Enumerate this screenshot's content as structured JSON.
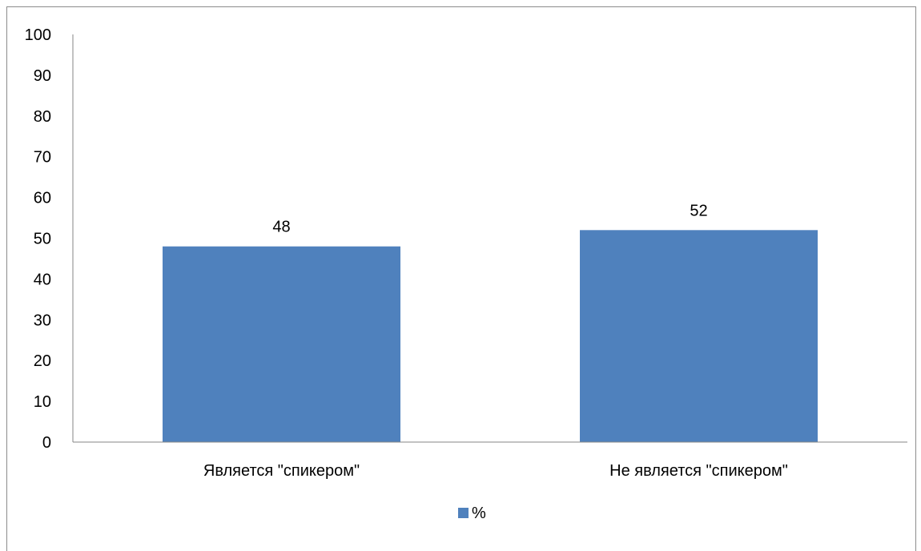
{
  "chart_data": {
    "type": "bar",
    "categories": [
      "Является \"спикером\"",
      "Не является \"спикером\""
    ],
    "series": [
      {
        "name": "%",
        "values": [
          48,
          52
        ],
        "color": "#4f81bd"
      }
    ],
    "data_labels": [
      "48",
      "52"
    ],
    "ylim": [
      0,
      100
    ],
    "yticks": [
      0,
      10,
      20,
      30,
      40,
      50,
      60,
      70,
      80,
      90,
      100
    ],
    "grid": false,
    "legend_position": "bottom",
    "xlabel": "",
    "ylabel": "",
    "title": ""
  }
}
